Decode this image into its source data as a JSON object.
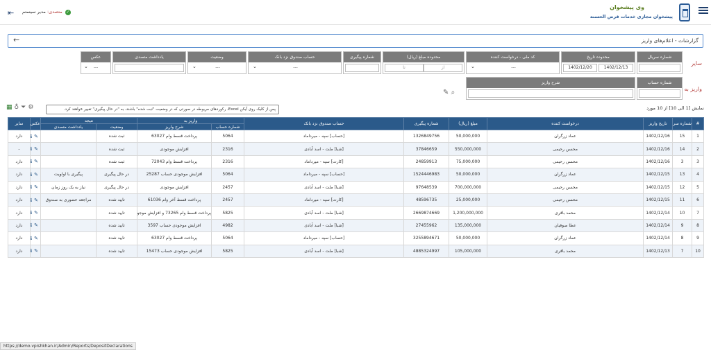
{
  "header": {
    "brand_title": "وی پیشخوان",
    "brand_subtitle": "پیشخوان مجازی خدمات قرض الحسنه",
    "user_label": "متصدی:",
    "user_name": "مدیر سیستم"
  },
  "breadcrumb": "گزارشات - اعلام‌های واریز",
  "filters": {
    "side_label_other": "سایر",
    "side_label_deposit": "واریز به",
    "serial_label": "شماره سریال",
    "date_range_label": "محدوده تاریخ",
    "date_from": "1402/12/13",
    "date_to": "1402/12/20",
    "national_id_label": "کد ملی - درخواست کننده",
    "national_id_value": "---",
    "amount_range_label": "محدوده مبلغ (ریال)",
    "amount_from_ph": "از",
    "amount_to_ph": "تا",
    "tracking_label": "شماره پیگیری",
    "bank_account_label": "حساب صندوق نزد بانک",
    "bank_account_value": "---",
    "status_label": "وضعیت",
    "status_value": "---",
    "operator_note_label": "یادداشت متصدی",
    "photo_label": "عکس",
    "photo_value": "---",
    "account_no_label": "شماره حساب",
    "deposit_desc_label": "شرح واریز"
  },
  "count_text": "نمایش [1 الی 10] از 10 مورد",
  "tooltip_text": "پس از کلیک روی آیکن Excel، رکوردهای مربوطه در صورتی که در وضعیت \"ثبت شده\" باشند، به \"در حال پیگیری\" تغییر خواهند کرد.",
  "table": {
    "group_deposit_to": "واریز به",
    "group_result": "نتیجه",
    "col_index": "#",
    "col_serial": "شماره سریال",
    "col_date": "تاریخ واریز",
    "col_requester": "درخواست کننده",
    "col_amount": "مبلغ (ریال)",
    "col_tracking": "شماره پیگیری",
    "col_bank": "حساب صندوق نزد بانک",
    "col_account": "شماره حساب",
    "col_desc": "شرح واریز",
    "col_status": "وضعیت",
    "col_note": "یادداشت متصدی",
    "col_photo": "عکس",
    "col_other": "سایر",
    "rows": [
      {
        "idx": "1",
        "serial": "15",
        "date": "1402/12/16",
        "requester": "عماد زرگران",
        "amount": "50,000,000",
        "tracking": "1326849756",
        "bank": "[حساب]  سپه - میرداماد",
        "account": "5064",
        "desc": "پرداخت قسط وام 63027",
        "status": "ثبت شده",
        "note": "",
        "photo": "دارد"
      },
      {
        "idx": "2",
        "serial": "14",
        "date": "1402/12/16",
        "requester": "محسن رحیمی",
        "amount": "550,000,000",
        "tracking": "37846659",
        "bank": "[شبا]  ملت - اسد آبادی",
        "account": "2316",
        "desc": "افزایش موجودی",
        "status": "ثبت شده",
        "note": "",
        "photo": "-"
      },
      {
        "idx": "3",
        "serial": "3",
        "date": "1402/12/16",
        "requester": "محسن رحیمی",
        "amount": "75,000,000",
        "tracking": "24859913",
        "bank": "[کارت]  سپه - میرداماد",
        "account": "2316",
        "desc": "پرداخت قسط وام 72043",
        "status": "ثبت شده",
        "note": "",
        "photo": "دارد"
      },
      {
        "idx": "4",
        "serial": "13",
        "date": "1402/12/15",
        "requester": "عماد زرگران",
        "amount": "50,000,000",
        "tracking": "1524446983",
        "bank": "[حساب]  سپه - میرداماد",
        "account": "5064",
        "desc": "افزایش موجودی حساب 25287",
        "status": "در حال پیگیری",
        "note": "پیگیری با اولویت",
        "photo": "دارد"
      },
      {
        "idx": "5",
        "serial": "12",
        "date": "1402/12/15",
        "requester": "محسن رحیمی",
        "amount": "700,000,000",
        "tracking": "97648539",
        "bank": "[شبا]  ملت - اسد آبادی",
        "account": "2457",
        "desc": "افزایش موجودی",
        "status": "در حال پیگیری",
        "note": "نیاز به یک روز زمان",
        "photo": "دارد"
      },
      {
        "idx": "6",
        "serial": "11",
        "date": "1402/12/15",
        "requester": "محسن رحیمی",
        "amount": "25,000,000",
        "tracking": "48596735",
        "bank": "[کارت]  سپه - میرداماد",
        "account": "2457",
        "desc": "پرداخت قسط آخر وام 61036",
        "status": "تایید شده",
        "note": "مراجعه حضوری به صندوق",
        "photo": "دارد"
      },
      {
        "idx": "7",
        "serial": "10",
        "date": "1402/12/14",
        "requester": "محمد باقری",
        "amount": "1,200,000,000",
        "tracking": "2669874669",
        "bank": "[شبا]  ملت - اسد آبادی",
        "account": "5825",
        "desc": "پرداخت قسط وام 73265 و افزایش موجودی",
        "status": "تایید شده",
        "note": "",
        "photo": "دارد"
      },
      {
        "idx": "8",
        "serial": "9",
        "date": "1402/12/14",
        "requester": "عطا صوفیان",
        "amount": "135,000,000",
        "tracking": "27455962",
        "bank": "[شبا]  ملت - اسد آبادی",
        "account": "4982",
        "desc": "افزایش موجودی حساب 3597",
        "status": "تایید شده",
        "note": "",
        "photo": "دارد"
      },
      {
        "idx": "9",
        "serial": "8",
        "date": "1402/12/14",
        "requester": "عماد زرگران",
        "amount": "50,000,000",
        "tracking": "3255894671",
        "bank": "[حساب]  سپه - میرداماد",
        "account": "5064",
        "desc": "پرداخت قسط وام 63027",
        "status": "تایید شده",
        "note": "",
        "photo": "دارد"
      },
      {
        "idx": "10",
        "serial": "7",
        "date": "1402/12/13",
        "requester": "محمد باقری",
        "amount": "105,000,000",
        "tracking": "4885324997",
        "bank": "[شبا]  ملت - اسد آبادی",
        "account": "5825",
        "desc": "افزایش موجودی حساب 15473",
        "status": "تایید شده",
        "note": "",
        "photo": "دارد"
      }
    ]
  },
  "status_url": "https://demo.vpishkhan.ir/Admin/Reports/DepositDeclarations"
}
